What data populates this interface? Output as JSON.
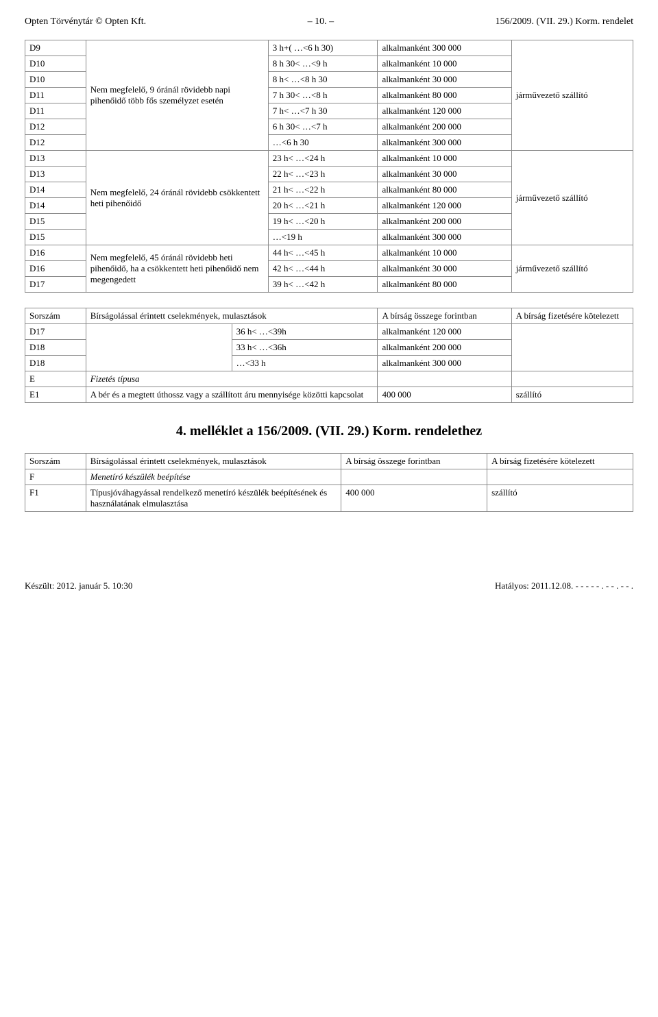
{
  "header": {
    "left": "Opten Törvénytár © Opten Kft.",
    "center": "– 10. –",
    "right": "156/2009. (VII. 29.) Korm. rendelet"
  },
  "table1": {
    "groups": [
      {
        "desc": "Nem megfelelő, 9 óránál rövidebb napi pihenőidő több fős személyzet esetén",
        "last_label": "járművezető szállító",
        "rows": [
          {
            "code": "D9",
            "range": "3 h+( …<6 h 30)",
            "penalty": "alkalmanként 300 000"
          },
          {
            "code": "D10",
            "range": "8 h 30< …<9 h",
            "penalty": "alkalmanként 10 000"
          },
          {
            "code": "D10",
            "range": "8 h< …<8 h 30",
            "penalty": "alkalmanként 30 000"
          },
          {
            "code": "D11",
            "range": "7 h 30< …<8 h",
            "penalty": "alkalmanként 80 000"
          },
          {
            "code": "D11",
            "range": "7 h< …<7 h 30",
            "penalty": "alkalmanként 120 000"
          },
          {
            "code": "D12",
            "range": "6 h 30< …<7 h",
            "penalty": "alkalmanként 200 000"
          },
          {
            "code": "D12",
            "range": "…<6 h 30",
            "penalty": "alkalmanként 300 000"
          }
        ]
      },
      {
        "desc": "Nem megfelelő, 24 óránál rövidebb csökkentett heti pihenőidő",
        "last_label": "járművezető szállító",
        "rows": [
          {
            "code": "D13",
            "range": "23 h< …<24 h",
            "penalty": "alkalmanként 10 000"
          },
          {
            "code": "D13",
            "range": "22 h< …<23 h",
            "penalty": "alkalmanként 30 000"
          },
          {
            "code": "D14",
            "range": "21 h< …<22 h",
            "penalty": "alkalmanként 80 000"
          },
          {
            "code": "D14",
            "range": "20 h< …<21 h",
            "penalty": "alkalmanként 120 000"
          },
          {
            "code": "D15",
            "range": "19 h< …<20 h",
            "penalty": "alkalmanként 200 000"
          },
          {
            "code": "D15",
            "range": "…<19 h",
            "penalty": "alkalmanként 300 000"
          }
        ]
      },
      {
        "desc": "Nem megfelelő, 45 óránál rövidebb heti pihenőidő, ha a csökkentett heti pihenőidő nem megengedett",
        "last_label": "járművezető szállító",
        "rows": [
          {
            "code": "D16",
            "range": "44 h< …<45 h",
            "penalty": "alkalmanként 10 000"
          },
          {
            "code": "D16",
            "range": "42 h< …<44 h",
            "penalty": "alkalmanként 30 000"
          },
          {
            "code": "D17",
            "range": "39 h< …<42 h",
            "penalty": "alkalmanként 80 000"
          }
        ]
      }
    ]
  },
  "table2": {
    "headers": [
      "Sorszám",
      "Bírságolással érintett cselekmények, mulasztások",
      "A bírság összege forintban",
      "A bírság fizetésére kötelezett"
    ],
    "rows": [
      {
        "code": "D17",
        "range": "36 h< …<39h",
        "penalty": "alkalmanként 120 000"
      },
      {
        "code": "D18",
        "range": "33 h< …<36h",
        "penalty": "alkalmanként 200 000"
      },
      {
        "code": "D18",
        "range": "…<33 h",
        "penalty": "alkalmanként 300 000"
      }
    ],
    "e_row": {
      "code": "E",
      "desc": "Fizetés típusa"
    },
    "e1_row": {
      "code": "E1",
      "desc": "A bér és a megtett úthossz vagy a szállított áru mennyisége közötti kapcsolat",
      "penalty": "400 000",
      "liable": "szállító"
    }
  },
  "section_title": "4. melléklet a 156/2009. (VII. 29.) Korm. rendelethez",
  "table3": {
    "headers": [
      "Sorszám",
      "Bírságolással érintett cselekmények, mulasztások",
      "A bírság összege forintban",
      "A bírság fizetésére kötelezett"
    ],
    "f_row": {
      "code": "F",
      "desc": "Menetíró készülék beépítése"
    },
    "f1_row": {
      "code": "F1",
      "desc": "Típusjóváhagyással rendelkező menetíró készülék beépítésének és használatának elmulasztása",
      "penalty": "400 000",
      "liable": "szállító"
    }
  },
  "footer": {
    "left": "Készült: 2012. január 5. 10:30",
    "right": "Hatályos: 2011.12.08. - - - - - . - - . - - ."
  },
  "layout": {
    "col_widths": {
      "c1": "10%",
      "c2": "30%",
      "c3": "18%",
      "c4": "22%",
      "c5": "20%"
    },
    "t2_widths": {
      "c1": "10%",
      "c2": "24%",
      "c3": "24%",
      "c4": "22%",
      "c5": "20%"
    },
    "t3_widths": {
      "c1": "10%",
      "c2": "42%",
      "c3": "24%",
      "c4": "24%"
    }
  }
}
